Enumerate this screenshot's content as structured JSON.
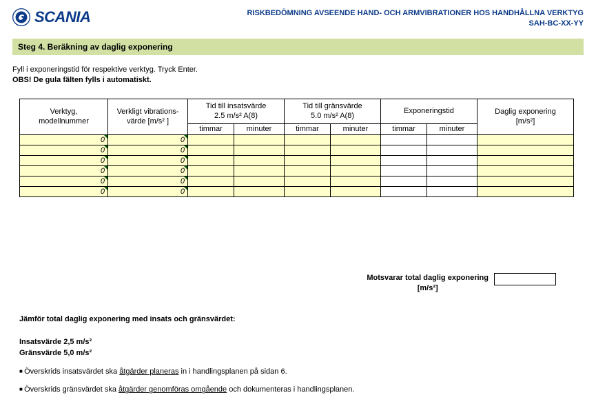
{
  "header": {
    "brand": "SCANIA",
    "title_line1": "RISKBEDÖMNING AVSEENDE HAND- OCH ARMVIBRATIONER HOS HANDHÅLLNA VERKTYG",
    "title_line2": "SAH-BC-XX-YY"
  },
  "step_bar": "Steg 4. Beräkning av daglig exponering",
  "instructions": {
    "line1": "Fyll i exponeringstid för respektive verktyg. Tryck Enter.",
    "line2": "OBS! De gula fälten fylls i automatiskt."
  },
  "table": {
    "columns": {
      "c1": "Verktyg,\nmodellnummer",
      "c2": "Verkligt vibrations-\nvärde [m/s² ]",
      "c3": "Tid till insatsvärde\n2.5 m/s² A(8)",
      "c4": "Tid till gränsvärde\n5.0 m/s²  A(8)",
      "c5": "Exponeringstid",
      "c6": "Daglig exponering\n[m/s²]",
      "sub_timmar": "timmar",
      "sub_minuter": "minuter"
    },
    "rows": [
      {
        "c1": "0",
        "c2": "0"
      },
      {
        "c1": "0",
        "c2": "0"
      },
      {
        "c1": "0",
        "c2": "0"
      },
      {
        "c1": "0",
        "c2": "0"
      },
      {
        "c1": "0",
        "c2": "0"
      },
      {
        "c1": "0",
        "c2": "0"
      }
    ]
  },
  "total": {
    "label_line1": "Motsvarar total daglig exponering",
    "label_line2": "[m/s²]"
  },
  "compare": {
    "heading": "Jämför total daglig exponering med insats och gränsvärdet:",
    "insats": "Insatsvärde 2,5 m/s²",
    "grans": "Gränsvärde 5,0 m/s²",
    "bullet1_pre": "Överskrids insatsvärdet ska ",
    "bullet1_u": "åtgärder planeras",
    "bullet1_post": " in i handlingsplanen på sidan 6.",
    "bullet2_pre": "Överskrids gränsvärdet ska ",
    "bullet2_u": "åtgärder genomföras omgående",
    "bullet2_post": " och dokumenteras i handlingsplanen."
  }
}
